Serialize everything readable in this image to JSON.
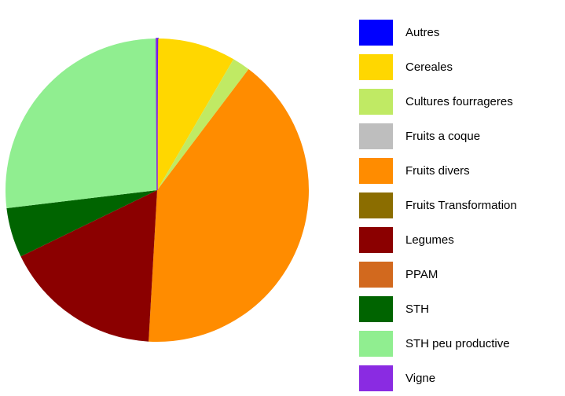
{
  "chart_data": {
    "type": "pie",
    "categories": [
      "Autres",
      "Cereales",
      "Cultures fourrageres",
      "Fruits a coque",
      "Fruits divers",
      "Fruits Transformation",
      "Legumes",
      "PPAM",
      "STH",
      "STH peu productive",
      "Vigne"
    ],
    "values": [
      0.1,
      8.3,
      1.9,
      0,
      40.6,
      0,
      16.9,
      0,
      5.3,
      26.8,
      0.1
    ],
    "colors": [
      "#0000ff",
      "#ffd700",
      "#c0ea64",
      "#bebebe",
      "#ff8c00",
      "#8b6d00",
      "#8b0000",
      "#d2691e",
      "#006400",
      "#90ee90",
      "#8a2be2"
    ],
    "legend": "right"
  }
}
